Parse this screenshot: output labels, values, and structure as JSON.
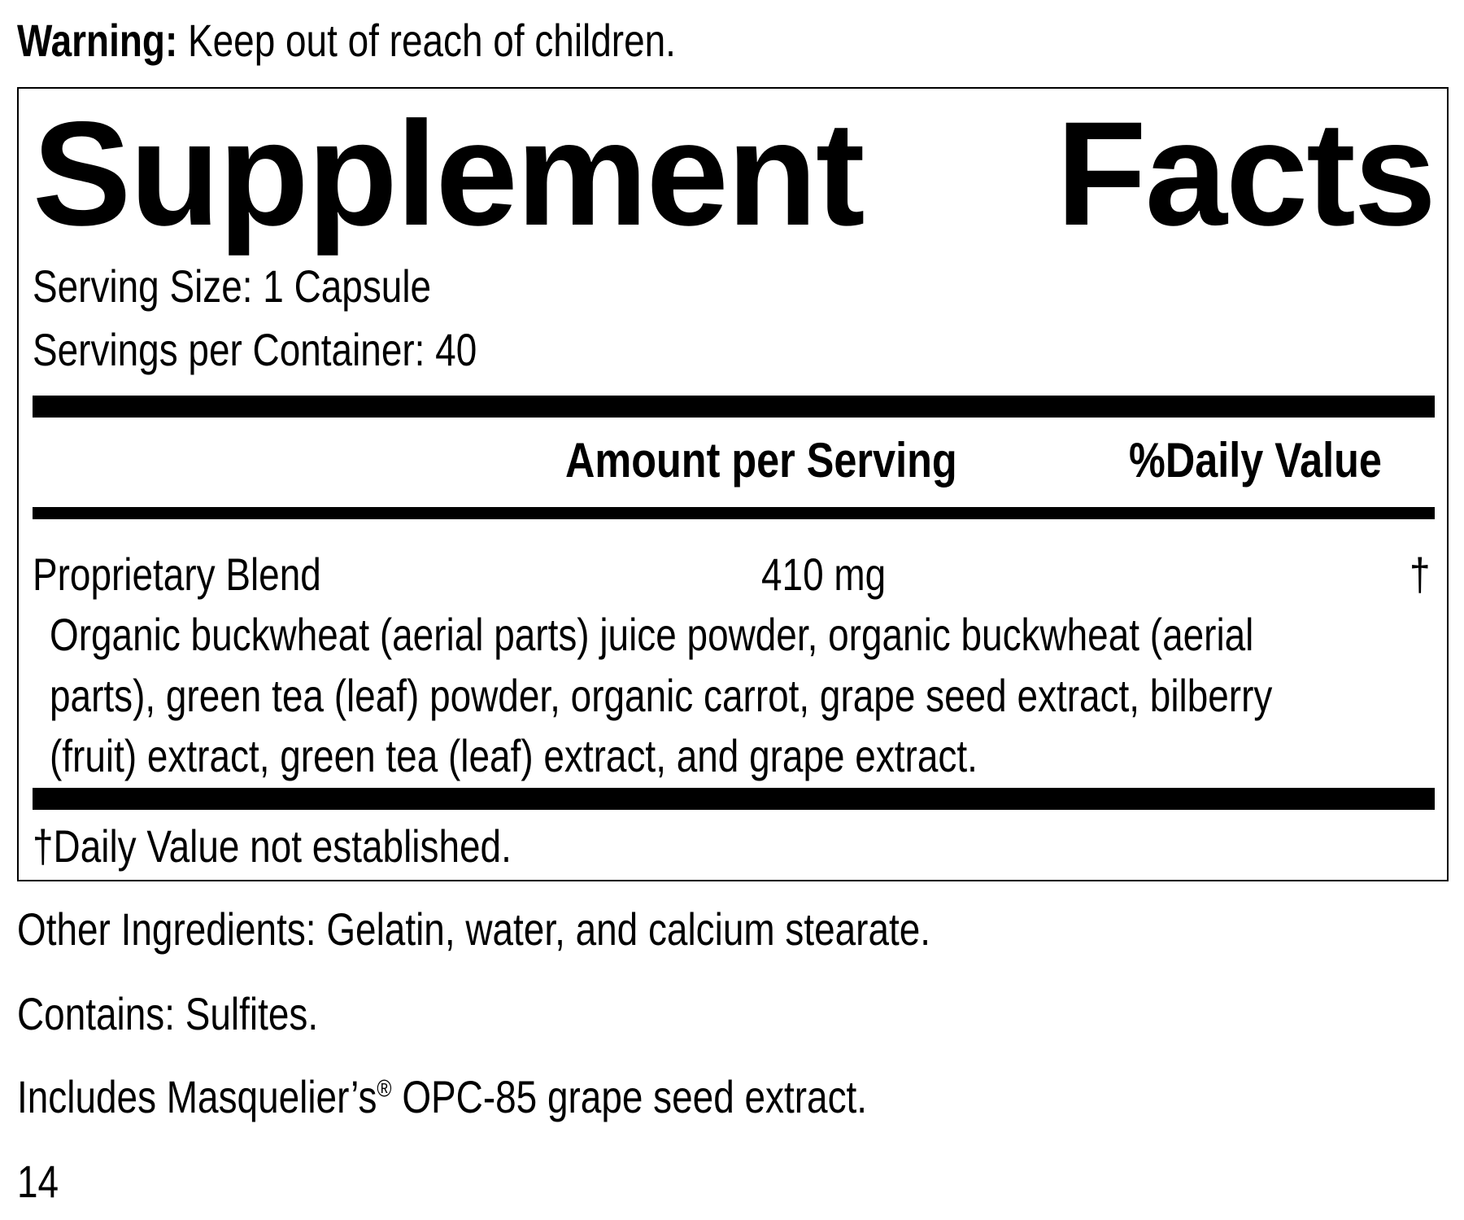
{
  "warning": {
    "label": "Warning:",
    "text": "Keep out of reach of children."
  },
  "panel": {
    "title_words": [
      "Supplement",
      "Facts"
    ],
    "serving_size": "Serving Size: 1 Capsule",
    "servings_per_container": "Servings per Container: 40",
    "header": {
      "amount": "Amount per Serving",
      "daily_value": "%Daily Value"
    },
    "rows": [
      {
        "name": "Proprietary Blend",
        "amount": "410 mg",
        "dv": "†",
        "ingredients": [
          "Organic buckwheat (aerial parts) juice powder, organic buckwheat (aerial",
          "parts), green tea (leaf) powder, organic carrot, grape seed extract, bilberry",
          "(fruit) extract, green tea (leaf) extract, and grape extract."
        ]
      }
    ],
    "footnote": "†Daily Value not established."
  },
  "other_ingredients": "Other Ingredients: Gelatin, water, and calcium stearate.",
  "contains": "Contains: Sulfites.",
  "includes": {
    "before": "Includes Masquelier’s",
    "mark": "®",
    "after": " OPC-85 grape seed extract."
  },
  "page_number": "14"
}
